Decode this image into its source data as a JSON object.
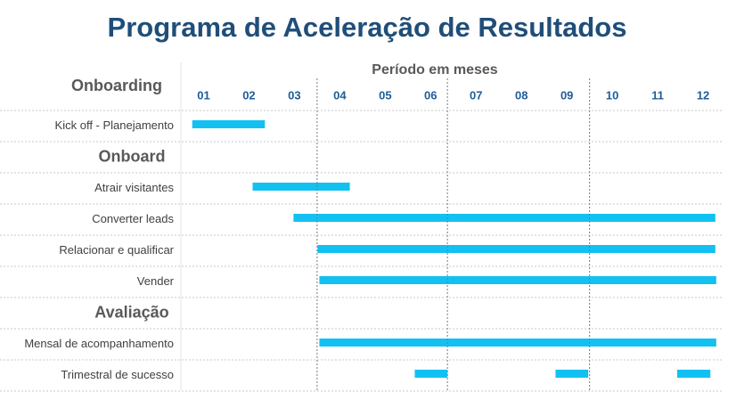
{
  "chart_data": {
    "type": "gantt",
    "title": "Programa de Aceleração de Resultados",
    "x_label": "Período em meses",
    "xlim": [
      0.5,
      12.45
    ],
    "xticks": [
      {
        "value": 1,
        "label": "01"
      },
      {
        "value": 2,
        "label": "02"
      },
      {
        "value": 3,
        "label": "03"
      },
      {
        "value": 4,
        "label": "04"
      },
      {
        "value": 5,
        "label": "05"
      },
      {
        "value": 6,
        "label": "06"
      },
      {
        "value": 7,
        "label": "07"
      },
      {
        "value": 8,
        "label": "08"
      },
      {
        "value": 9,
        "label": "09"
      },
      {
        "value": 10,
        "label": "10"
      },
      {
        "value": 11,
        "label": "11"
      },
      {
        "value": 12,
        "label": "12"
      }
    ],
    "quarter_lines": [
      3.5,
      6.37,
      9.5
    ],
    "color": "#12c1f2",
    "sections": [
      {
        "name": "Onboarding",
        "tasks": [
          {
            "name": "Kick off - Planejamento",
            "bars": [
              [
                0.75,
                2.35
              ]
            ]
          }
        ]
      },
      {
        "name": "Onboard",
        "tasks": [
          {
            "name": "Atrair visitantes",
            "bars": [
              [
                2.08,
                4.22
              ]
            ]
          },
          {
            "name": "Converter leads",
            "bars": [
              [
                2.98,
                12.27
              ]
            ]
          },
          {
            "name": "Relacionar e qualificar",
            "bars": [
              [
                3.51,
                12.27
              ]
            ]
          },
          {
            "name": "Vender",
            "bars": [
              [
                3.55,
                12.29
              ]
            ]
          }
        ]
      },
      {
        "name": "Avaliação",
        "tasks": [
          {
            "name": "Mensal de acompanhamento",
            "bars": [
              [
                3.55,
                12.29
              ]
            ]
          },
          {
            "name": "Trimestral de sucesso",
            "bars": [
              [
                5.65,
                6.37
              ],
              [
                8.75,
                9.47
              ],
              [
                11.43,
                12.16
              ]
            ]
          }
        ]
      }
    ]
  }
}
